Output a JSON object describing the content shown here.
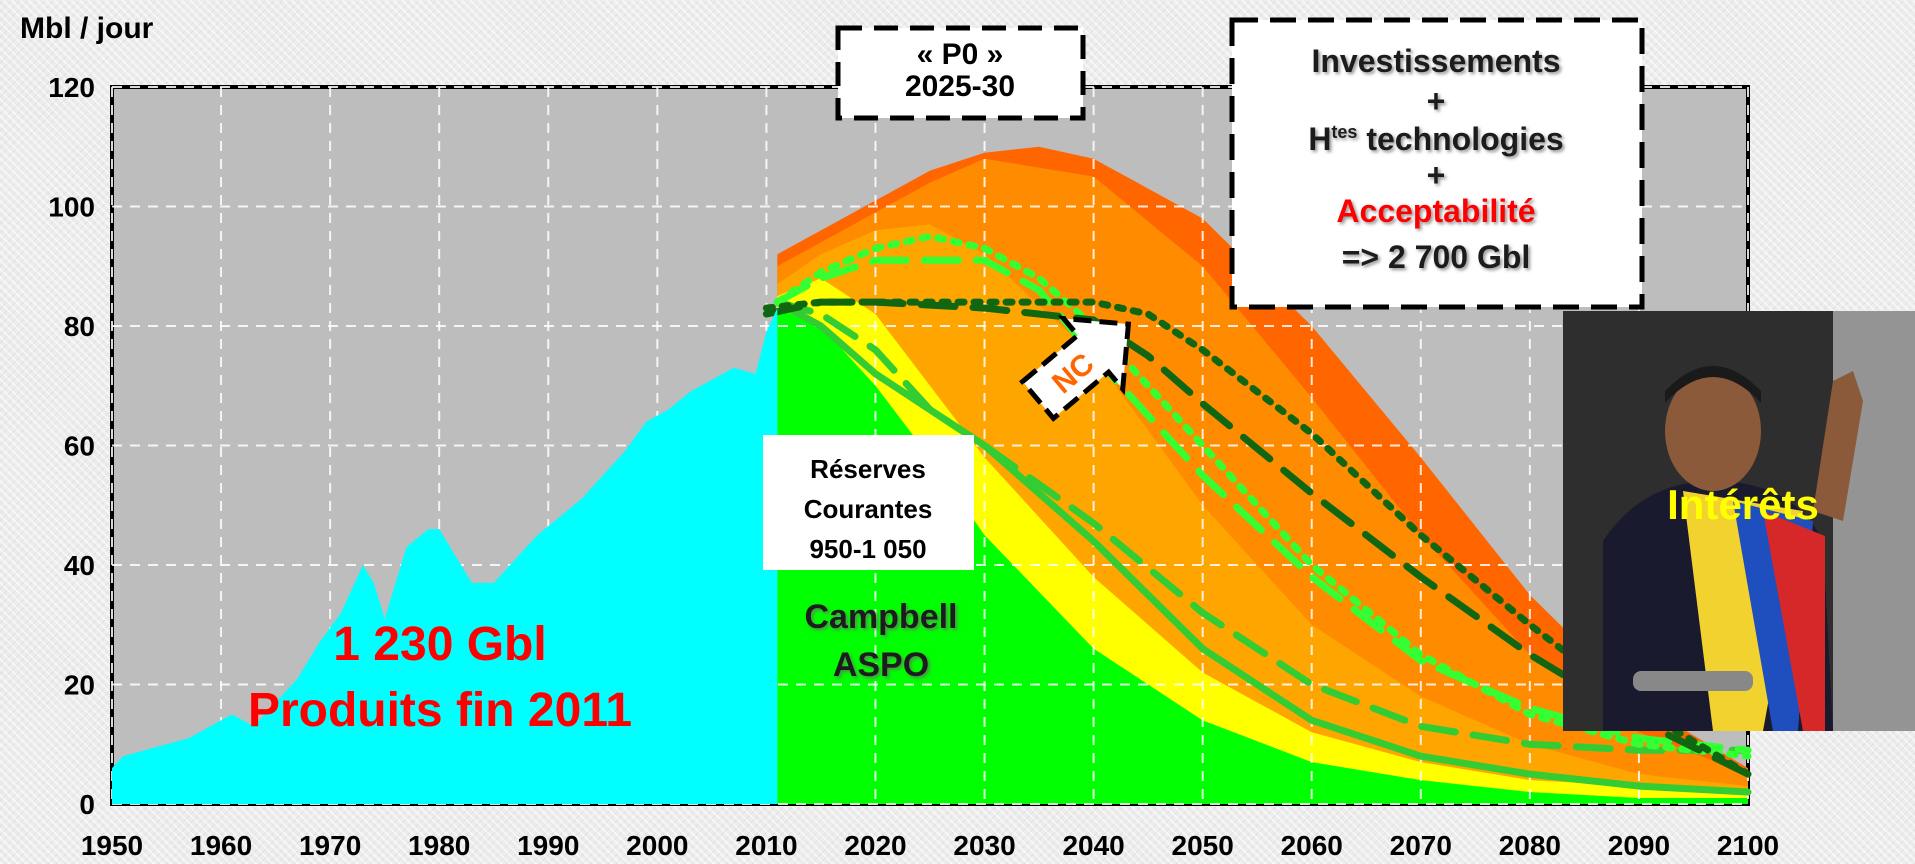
{
  "chart_data": {
    "type": "area",
    "ylabel": "Mbl / jour",
    "ylim": [
      0,
      120
    ],
    "xlim": [
      1950,
      2100
    ],
    "yticks": [
      "0",
      "20",
      "40",
      "60",
      "80",
      "100",
      "120"
    ],
    "xticks": [
      "1950",
      "1960",
      "1970",
      "1980",
      "1990",
      "2000",
      "2010",
      "2020",
      "2030",
      "2040",
      "2050",
      "2060",
      "2070",
      "2080",
      "2090",
      "2100"
    ],
    "grid": true,
    "colors": {
      "historical": "#00ffff",
      "current_reserves": "#00ff00",
      "layer_yellow": "#ffff00",
      "layer_light_orange": "#ffa500",
      "layer_orange": "#ff8c00",
      "layer_dark_orange": "#ff6600",
      "plot_background": "#bdbdbd"
    },
    "series": [
      {
        "key": "historical",
        "x": [
          1950,
          1951,
          1953,
          1955,
          1957,
          1959,
          1961,
          1963,
          1965,
          1967,
          1969,
          1971,
          1973,
          1974,
          1975,
          1977,
          1979,
          1980,
          1981,
          1983,
          1985,
          1987,
          1989,
          1991,
          1993,
          1995,
          1997,
          1999,
          2001,
          2003,
          2005,
          2007,
          2009,
          2010,
          2011
        ],
        "y": [
          6,
          8,
          9,
          10,
          11,
          13,
          15,
          13,
          17,
          21,
          27,
          32,
          40,
          37,
          31,
          43,
          46,
          46,
          43,
          37,
          37,
          41,
          45,
          48,
          51,
          55,
          59,
          64,
          66,
          69,
          71,
          73,
          72,
          79,
          83
        ]
      },
      {
        "key": "current_reserves",
        "x": [
          2011,
          2015,
          2020,
          2025,
          2030,
          2040,
          2050,
          2060,
          2070,
          2080,
          2090,
          2100
        ],
        "y": [
          83,
          80,
          70,
          58,
          45,
          26,
          14,
          7,
          4,
          2,
          1,
          1
        ]
      },
      {
        "key": "layer_yellow",
        "x": [
          2011,
          2015,
          2020,
          2025,
          2030,
          2040,
          2050,
          2060,
          2070,
          2080,
          2090,
          2100
        ],
        "y": [
          85,
          88,
          82,
          70,
          58,
          38,
          22,
          12,
          7,
          4,
          3,
          2
        ]
      },
      {
        "key": "layer_light_orange",
        "x": [
          2011,
          2015,
          2020,
          2025,
          2030,
          2040,
          2050,
          2060,
          2070,
          2080,
          2090,
          2100
        ],
        "y": [
          87,
          92,
          96,
          97,
          92,
          75,
          50,
          30,
          18,
          10,
          5,
          3
        ]
      },
      {
        "key": "layer_orange",
        "x": [
          2011,
          2015,
          2020,
          2025,
          2030,
          2040,
          2050,
          2060,
          2070,
          2080,
          2090,
          2100
        ],
        "y": [
          90,
          94,
          99,
          104,
          108,
          105,
          90,
          68,
          45,
          25,
          12,
          5
        ]
      },
      {
        "key": "layer_dark_orange",
        "x": [
          2011,
          2015,
          2020,
          2025,
          2030,
          2035,
          2040,
          2050,
          2060,
          2070,
          2080,
          2090,
          2100
        ],
        "y": [
          92,
          96,
          101,
          106,
          109,
          110,
          108,
          98,
          80,
          58,
          35,
          17,
          6
        ]
      }
    ],
    "scenario_lines": [
      {
        "key": "solid_green",
        "style": "solid",
        "color": "#33cc33",
        "x": [
          2011,
          2015,
          2020,
          2025,
          2030,
          2040,
          2050,
          2060,
          2070,
          2080,
          2090,
          2100
        ],
        "y": [
          84,
          80,
          72,
          66,
          60,
          44,
          26,
          14,
          8,
          5,
          3,
          2
        ]
      },
      {
        "key": "dashed_green",
        "style": "dashed",
        "color": "#33cc33",
        "x": [
          2011,
          2015,
          2020,
          2025,
          2030,
          2040,
          2050,
          2060,
          2070,
          2080,
          2090,
          2100
        ],
        "y": [
          84,
          82,
          76,
          66,
          60,
          47,
          32,
          20,
          13,
          10,
          9,
          9
        ]
      },
      {
        "key": "dashed_light_green",
        "style": "dashed",
        "color": "#33ff33",
        "x": [
          2011,
          2015,
          2020,
          2025,
          2030,
          2035,
          2040,
          2050,
          2060,
          2070,
          2080,
          2090,
          2100
        ],
        "y": [
          84,
          88,
          91,
          91,
          91,
          86,
          75,
          55,
          38,
          24,
          16,
          11,
          9
        ]
      },
      {
        "key": "dotted_light_green",
        "style": "dotted",
        "color": "#33ff33",
        "x": [
          2011,
          2015,
          2020,
          2025,
          2030,
          2035,
          2040,
          2050,
          2060,
          2070,
          2080,
          2090,
          2100
        ],
        "y": [
          84,
          89,
          93,
          95,
          93,
          88,
          80,
          60,
          40,
          25,
          15,
          10,
          8
        ]
      },
      {
        "key": "dashed_dark_green",
        "style": "dashed",
        "color": "#116611",
        "x": [
          2010,
          2015,
          2020,
          2030,
          2040,
          2045,
          2050,
          2060,
          2070,
          2080,
          2090,
          2100
        ],
        "y": [
          82,
          84,
          84,
          83,
          81,
          75,
          67,
          52,
          38,
          25,
          14,
          5
        ]
      },
      {
        "key": "dotted_dark_green",
        "style": "dotted",
        "color": "#116611",
        "x": [
          2010,
          2015,
          2020,
          2030,
          2040,
          2045,
          2050,
          2060,
          2070,
          2080,
          2090,
          2100
        ],
        "y": [
          83,
          84,
          84,
          84,
          84,
          82,
          76,
          62,
          45,
          30,
          16,
          5
        ]
      }
    ]
  },
  "annotations": {
    "produced_amount": "1 230 Gbl",
    "produced_label": "Produits fin 2011",
    "reserves_line1": "Réserves",
    "reserves_line2": "Courantes",
    "reserves_line3": "950-1 050",
    "campbell_line1": "Campbell",
    "campbell_line2": "ASPO",
    "p0_line1": "« P0 »",
    "p0_line2": "2025-30",
    "invest_line1": "Investissements",
    "invest_plus1": "+",
    "invest_line2_base": "H",
    "invest_line2_sup": "tes",
    "invest_line2_rest": " technologies",
    "invest_plus2": "+",
    "invest_line3": "Acceptabilité",
    "invest_line4": "=> 2 700 Gbl",
    "nc_label": "NC",
    "photo_caption": "Intérêts"
  }
}
